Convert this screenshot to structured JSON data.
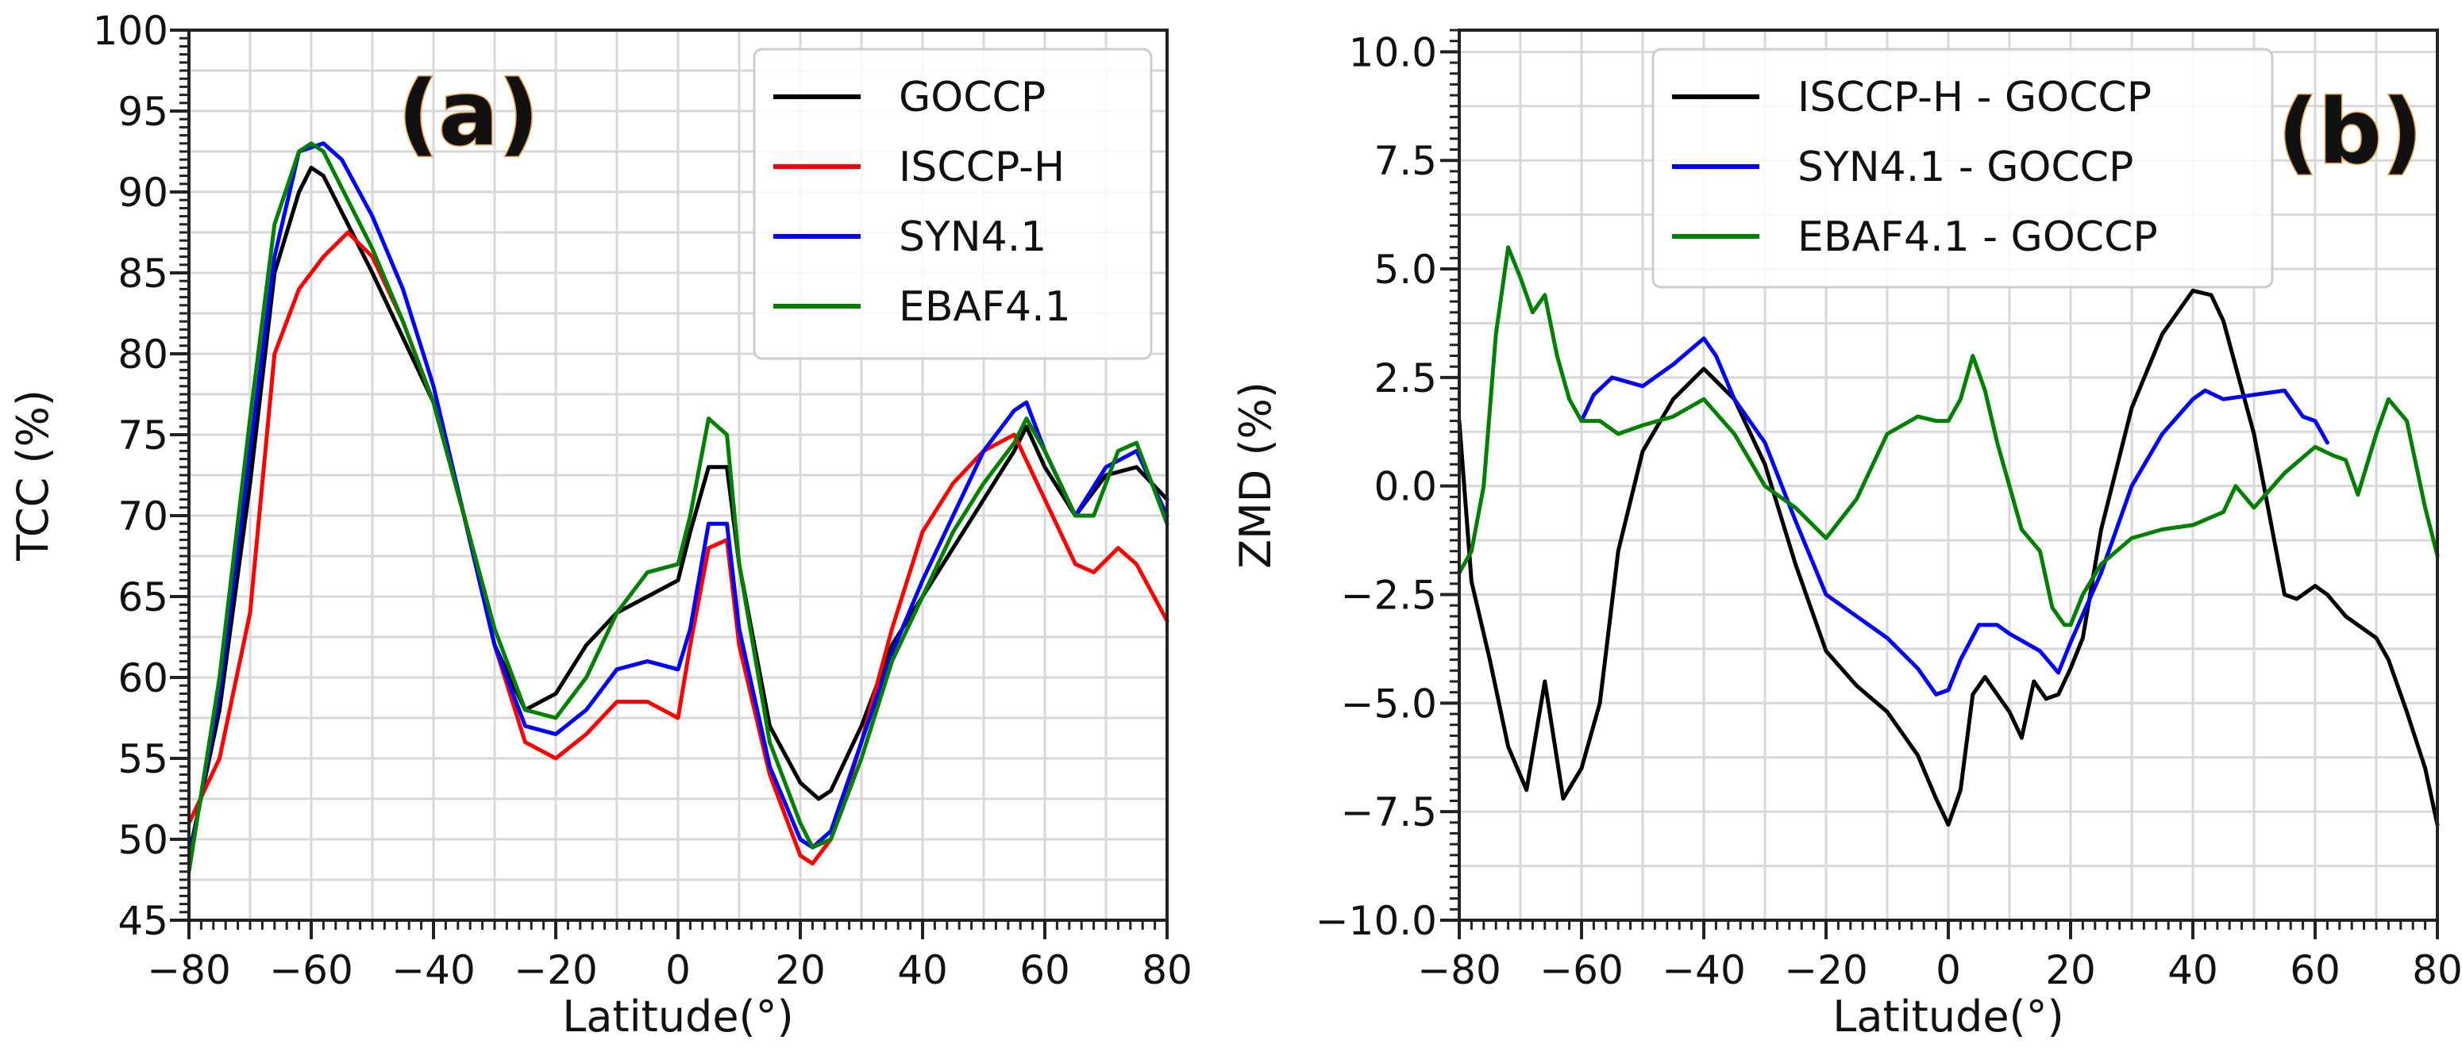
{
  "chart_data": [
    {
      "type": "line",
      "panel_label": "(a)",
      "title": "",
      "xlabel": "Latitude(°)",
      "ylabel": "TCC (%)",
      "xlim": [
        -80,
        80
      ],
      "ylim": [
        45,
        100
      ],
      "xticks": [
        -80,
        -60,
        -40,
        -20,
        0,
        20,
        40,
        60,
        80
      ],
      "xtick_labels": [
        "−80",
        "−60",
        "−40",
        "−20",
        "0",
        "20",
        "40",
        "60",
        "80"
      ],
      "yticks": [
        45,
        50,
        55,
        60,
        65,
        70,
        75,
        80,
        85,
        90,
        95,
        100
      ],
      "ytick_labels": [
        "45",
        "50",
        "55",
        "60",
        "65",
        "70",
        "75",
        "80",
        "85",
        "90",
        "95",
        "100"
      ],
      "grid": true,
      "legend_position": "top-right",
      "colors": {
        "GOCCP": "#000000",
        "ISCCP-H": "#ff0000",
        "SYN4.1": "#0000ff",
        "EBAF4.1": "#008000"
      },
      "series": [
        {
          "name": "GOCCP",
          "color": "#000000",
          "x": [
            -80,
            -75,
            -70,
            -66,
            -62,
            -60,
            -58,
            -54,
            -50,
            -45,
            -40,
            -35,
            -30,
            -25,
            -20,
            -15,
            -10,
            -5,
            0,
            2,
            5,
            8,
            10,
            15,
            20,
            23,
            25,
            30,
            35,
            40,
            45,
            50,
            55,
            57,
            60,
            65,
            70,
            75,
            80
          ],
          "y": [
            49,
            58,
            72,
            85,
            90,
            91.5,
            91,
            88,
            85,
            81,
            77,
            70,
            62,
            58,
            59,
            62,
            64,
            65,
            66,
            69,
            73,
            73,
            67,
            57,
            53.5,
            52.5,
            53,
            57,
            62,
            65,
            68,
            71,
            74,
            75.5,
            73,
            70,
            72.5,
            73,
            71
          ]
        },
        {
          "name": "ISCCP-H",
          "color": "#ff0000",
          "x": [
            -80,
            -75,
            -70,
            -66,
            -62,
            -58,
            -54,
            -50,
            -45,
            -40,
            -35,
            -30,
            -25,
            -20,
            -15,
            -10,
            -5,
            0,
            2,
            5,
            8,
            10,
            15,
            20,
            22,
            25,
            30,
            35,
            40,
            45,
            50,
            55,
            60,
            65,
            68,
            72,
            75,
            80
          ],
          "y": [
            51,
            55,
            64,
            80,
            84,
            86,
            87.5,
            86,
            82,
            77,
            70,
            62,
            56,
            55,
            56.5,
            58.5,
            58.5,
            57.5,
            62,
            68,
            68.5,
            62,
            54,
            49,
            48.5,
            50,
            56,
            63,
            69,
            72,
            74,
            75,
            71,
            67,
            66.5,
            68,
            67,
            63.5
          ]
        },
        {
          "name": "SYN4.1",
          "color": "#0000ff",
          "x": [
            -80,
            -75,
            -70,
            -66,
            -62,
            -58,
            -55,
            -50,
            -45,
            -40,
            -35,
            -30,
            -25,
            -20,
            -15,
            -10,
            -5,
            0,
            2,
            5,
            8,
            10,
            15,
            20,
            22,
            25,
            30,
            35,
            40,
            45,
            50,
            55,
            57,
            60,
            65,
            70,
            75,
            80
          ],
          "y": [
            48.5,
            59,
            74,
            86,
            92.5,
            93,
            92,
            88.5,
            84,
            78,
            70,
            62,
            57,
            56.5,
            58,
            60.5,
            61,
            60.5,
            63,
            69.5,
            69.5,
            63,
            54.5,
            50,
            49.5,
            50.5,
            56,
            61.5,
            66,
            70,
            74,
            76.5,
            77,
            74,
            70,
            73,
            74,
            70
          ]
        },
        {
          "name": "EBAF4.1",
          "color": "#008000",
          "x": [
            -80,
            -75,
            -70,
            -66,
            -62,
            -60,
            -58,
            -54,
            -50,
            -45,
            -40,
            -35,
            -30,
            -25,
            -20,
            -15,
            -10,
            -5,
            0,
            2,
            5,
            8,
            10,
            15,
            20,
            22,
            25,
            30,
            35,
            40,
            45,
            50,
            55,
            57,
            60,
            65,
            68,
            72,
            75,
            80
          ],
          "y": [
            48,
            60,
            76,
            88,
            92.5,
            93,
            92.5,
            89.5,
            86.5,
            82,
            77,
            70,
            63,
            58,
            57.5,
            60,
            64,
            66.5,
            67,
            70,
            76,
            75,
            67,
            56,
            51,
            49.5,
            50,
            55,
            61,
            65,
            69,
            72,
            74.5,
            76,
            74,
            70,
            70,
            74,
            74.5,
            69.5
          ]
        }
      ]
    },
    {
      "type": "line",
      "panel_label": "(b)",
      "title": "",
      "xlabel": "Latitude(°)",
      "ylabel": "ZMD (%)",
      "xlim": [
        -80,
        80
      ],
      "ylim": [
        -10,
        10.5
      ],
      "xticks": [
        -80,
        -60,
        -40,
        -20,
        0,
        20,
        40,
        60,
        80
      ],
      "xtick_labels": [
        "−80",
        "−60",
        "−40",
        "−20",
        "0",
        "20",
        "40",
        "60",
        "80"
      ],
      "yticks": [
        -10,
        -7.5,
        -5,
        -2.5,
        0,
        2.5,
        5,
        7.5,
        10
      ],
      "ytick_labels": [
        "−10.0",
        "−7.5",
        "−5.0",
        "−2.5",
        "0.0",
        "2.5",
        "5.0",
        "7.5",
        "10.0"
      ],
      "grid": true,
      "legend_position": "top-left",
      "colors": {
        "ISCCP-H - GOCCP": "#000000",
        "SYN4.1 - GOCCP": "#0000ff",
        "EBAF4.1 - GOCCP": "#008000"
      },
      "series": [
        {
          "name": "ISCCP-H - GOCCP",
          "color": "#000000",
          "x": [
            -80,
            -78,
            -75,
            -72,
            -69,
            -66,
            -63,
            -60,
            -57,
            -54,
            -50,
            -45,
            -40,
            -35,
            -30,
            -25,
            -20,
            -15,
            -10,
            -5,
            -2,
            0,
            2,
            4,
            6,
            8,
            10,
            12,
            14,
            16,
            18,
            20,
            22,
            25,
            30,
            35,
            40,
            43,
            45,
            50,
            55,
            57,
            60,
            62,
            65,
            68,
            70,
            72,
            75,
            78,
            80
          ],
          "y": [
            1.5,
            -2.2,
            -4,
            -6,
            -7,
            -4.5,
            -7.2,
            -6.5,
            -5,
            -1.5,
            0.8,
            2,
            2.7,
            2,
            0.5,
            -1.8,
            -3.8,
            -4.6,
            -5.2,
            -6.2,
            -7.2,
            -7.8,
            -7,
            -4.8,
            -4.4,
            -4.8,
            -5.2,
            -5.8,
            -4.5,
            -4.9,
            -4.8,
            -4.2,
            -3.5,
            -1,
            1.8,
            3.5,
            4.5,
            4.4,
            3.8,
            1.2,
            -2.5,
            -2.6,
            -2.3,
            -2.5,
            -3,
            -3.3,
            -3.5,
            -4,
            -5.2,
            -6.5,
            -7.8
          ]
        },
        {
          "name": "SYN4.1 - GOCCP",
          "color": "#0000ff",
          "x": [
            -60,
            -58,
            -55,
            -50,
            -45,
            -40,
            -38,
            -35,
            -30,
            -25,
            -20,
            -15,
            -10,
            -5,
            -2,
            0,
            2,
            5,
            8,
            10,
            15,
            18,
            20,
            25,
            30,
            35,
            40,
            42,
            45,
            50,
            55,
            58,
            60,
            62
          ],
          "y": [
            1.5,
            2.1,
            2.5,
            2.3,
            2.8,
            3.4,
            3,
            2,
            1,
            -0.8,
            -2.5,
            -3,
            -3.5,
            -4.2,
            -4.8,
            -4.7,
            -4,
            -3.2,
            -3.2,
            -3.4,
            -3.8,
            -4.3,
            -3.6,
            -2,
            0,
            1.2,
            2,
            2.2,
            2,
            2.1,
            2.2,
            1.6,
            1.5,
            1
          ]
        },
        {
          "name": "EBAF4.1 - GOCCP",
          "color": "#008000",
          "x": [
            -80,
            -78,
            -76,
            -74,
            -72,
            -70,
            -68,
            -66,
            -64,
            -62,
            -60,
            -57,
            -54,
            -50,
            -45,
            -40,
            -35,
            -30,
            -25,
            -20,
            -15,
            -10,
            -5,
            -2,
            0,
            2,
            4,
            6,
            8,
            10,
            12,
            15,
            17,
            19,
            20,
            22,
            25,
            30,
            35,
            40,
            45,
            47,
            50,
            55,
            60,
            63,
            65,
            67,
            70,
            72,
            75,
            78,
            80
          ],
          "y": [
            -2,
            -1.5,
            0,
            3.5,
            5.5,
            4.8,
            4,
            4.4,
            3,
            2,
            1.5,
            1.5,
            1.2,
            1.4,
            1.6,
            2,
            1.2,
            0,
            -0.5,
            -1.2,
            -0.3,
            1.2,
            1.6,
            1.5,
            1.5,
            2,
            3,
            2.2,
            1,
            0,
            -1,
            -1.5,
            -2.8,
            -3.2,
            -3.2,
            -2.5,
            -1.8,
            -1.2,
            -1,
            -0.9,
            -0.6,
            0,
            -0.5,
            0.3,
            0.9,
            0.7,
            0.6,
            -0.2,
            1.2,
            2,
            1.5,
            -0.5,
            -1.6
          ]
        }
      ]
    }
  ]
}
